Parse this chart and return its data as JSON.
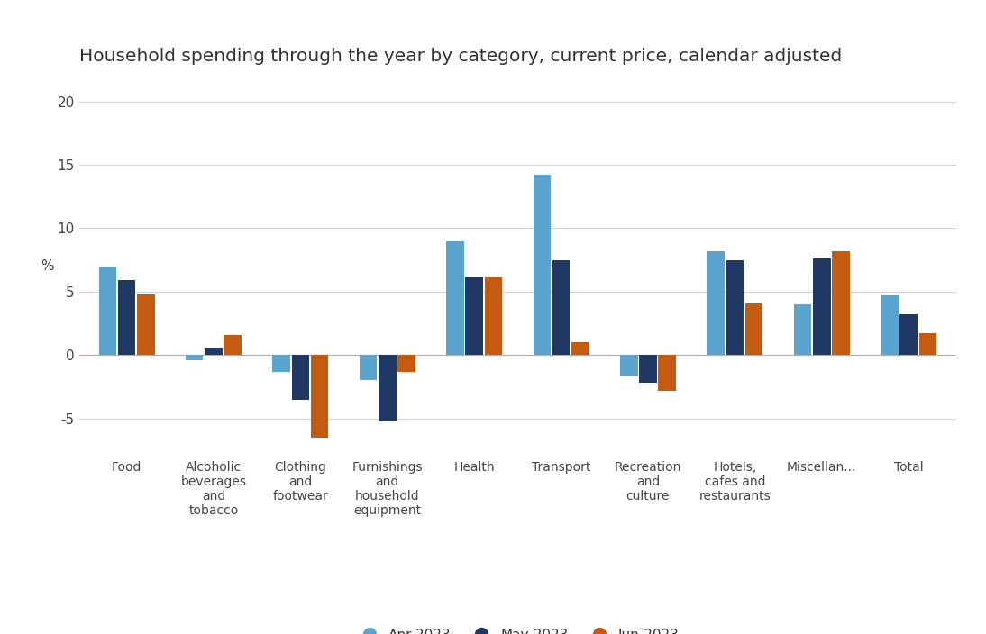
{
  "title": "Household spending through the year by category, current price, calendar adjusted",
  "ylabel": "%",
  "categories": [
    "Food",
    "Alcoholic\nbeverages\nand\ntobacco",
    "Clothing\nand\nfootwear",
    "Furnishings\nand\nhousehold\nequipment",
    "Health",
    "Transport",
    "Recreation\nand\nculture",
    "Hotels,\ncafes and\nrestaurants",
    "Miscellan...",
    "Total"
  ],
  "series": {
    "Apr-2023": [
      7.0,
      -0.4,
      -1.3,
      -2.0,
      9.0,
      14.2,
      -1.7,
      8.2,
      4.0,
      4.7
    ],
    "May-2023": [
      5.9,
      0.6,
      -3.5,
      -5.2,
      6.1,
      7.5,
      -2.2,
      7.5,
      7.6,
      3.2
    ],
    "Jun-2023": [
      4.8,
      1.6,
      -6.5,
      -1.3,
      6.1,
      1.0,
      -2.8,
      4.1,
      8.2,
      1.7
    ]
  },
  "colors": {
    "Apr-2023": "#5BA4CF",
    "May-2023": "#1F3864",
    "Jun-2023": "#C55A11"
  },
  "ylim": [
    -8,
    22
  ],
  "yticks": [
    -5,
    0,
    5,
    10,
    15,
    20
  ],
  "background_color": "#ffffff",
  "grid_color": "#d3d3d3",
  "title_fontsize": 14.5,
  "ylabel_fontsize": 11,
  "tick_fontsize": 11,
  "xtick_fontsize": 10,
  "legend_fontsize": 11
}
